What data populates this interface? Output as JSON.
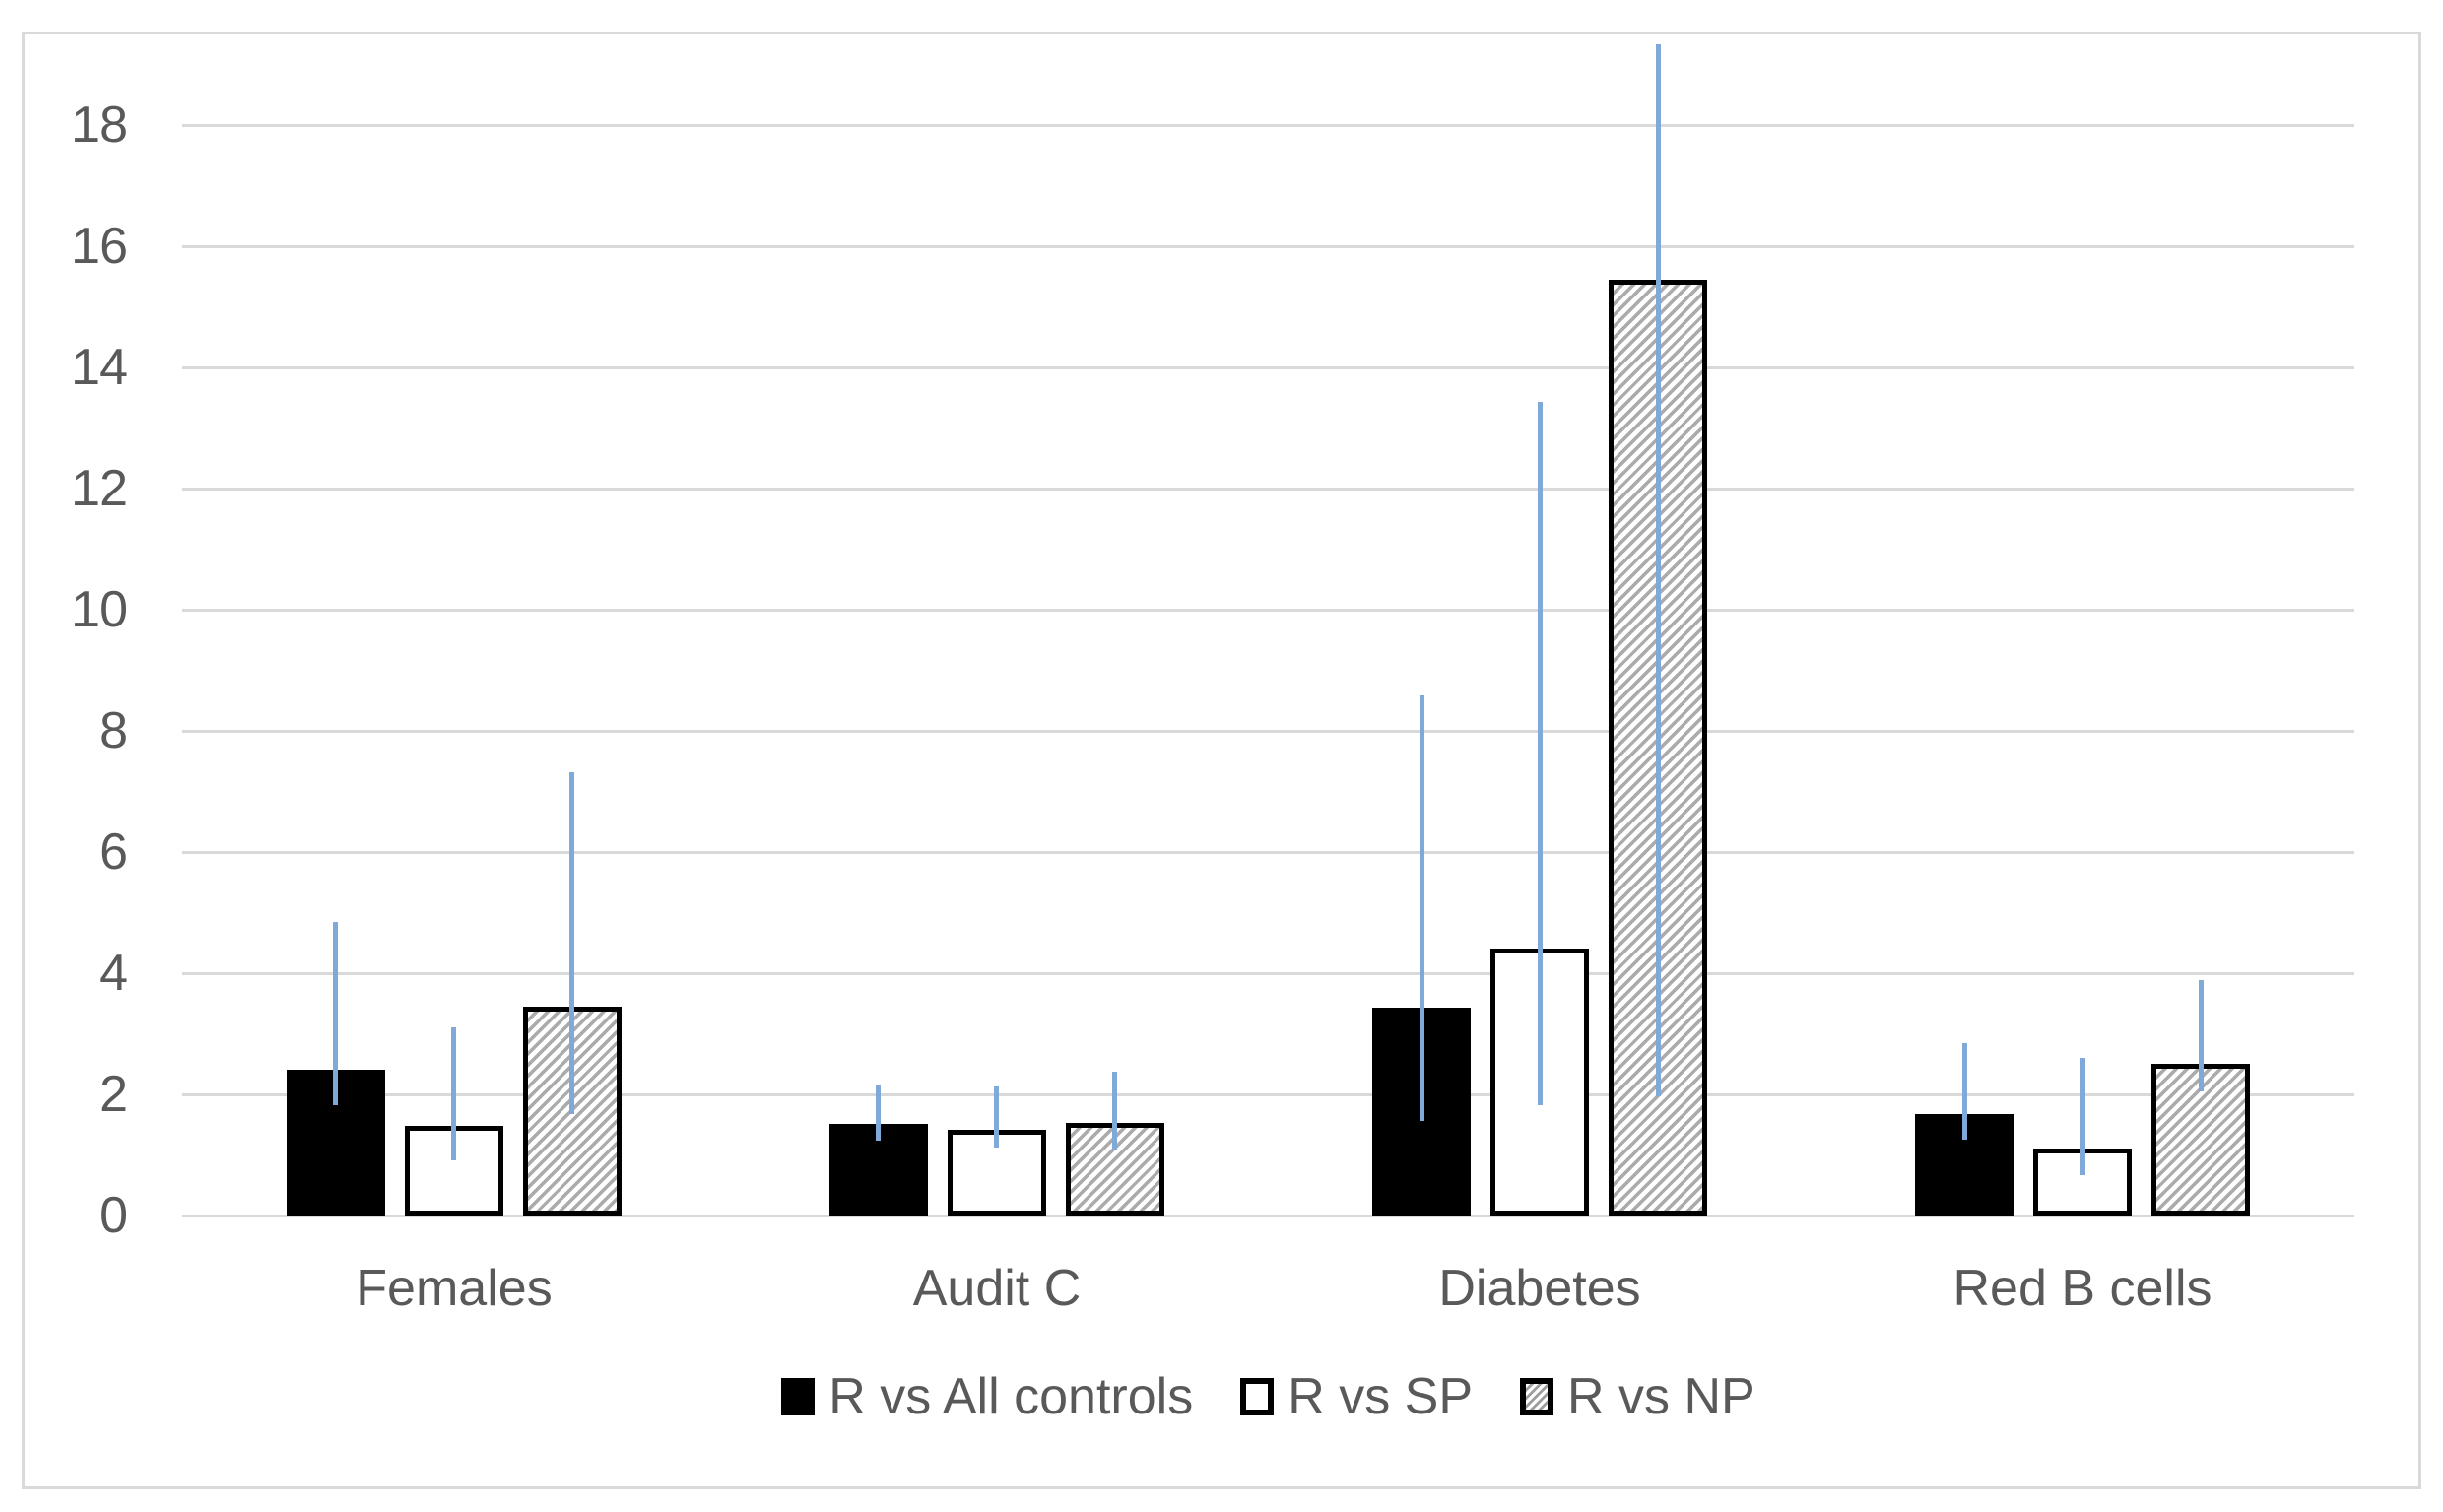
{
  "chart_data": {
    "type": "bar",
    "title": "",
    "xlabel": "",
    "ylabel": "",
    "categories": [
      "Females",
      "Audit C",
      "Diabetes",
      "Red B cells"
    ],
    "series": [
      {
        "name": "R vs All controls",
        "style": "solid-black",
        "values": [
          2.4,
          1.51,
          3.43,
          1.67
        ],
        "error_low": [
          1.82,
          1.23,
          1.56,
          1.25
        ],
        "error_high": [
          4.84,
          2.14,
          8.59,
          2.84
        ]
      },
      {
        "name": "R vs SP",
        "style": "white-outline",
        "values": [
          1.48,
          1.42,
          4.41,
          1.1
        ],
        "error_low": [
          0.91,
          1.12,
          1.82,
          0.67
        ],
        "error_high": [
          3.1,
          2.13,
          13.43,
          2.6
        ]
      },
      {
        "name": "R vs NP",
        "style": "diagonal-hatch",
        "values": [
          3.45,
          1.53,
          15.45,
          2.5
        ],
        "error_low": [
          1.67,
          1.07,
          1.96,
          2.05
        ],
        "error_high": [
          7.32,
          2.37,
          19.33,
          3.88
        ]
      }
    ],
    "y_axis": {
      "min": 0,
      "max": 18,
      "step": 2,
      "tick_labels": [
        "0",
        "2",
        "4",
        "6",
        "8",
        "10",
        "12",
        "14",
        "16",
        "18"
      ]
    },
    "grid": true,
    "legend_position": "bottom",
    "colors": {
      "error_bar": "#7fa9d8",
      "text": "#595959",
      "gridline": "#d9d9d9",
      "frame_border": "#d9d9d9",
      "hatch_line": "#ababab",
      "bar_black": "#000000",
      "bar_white": "#ffffff"
    }
  }
}
